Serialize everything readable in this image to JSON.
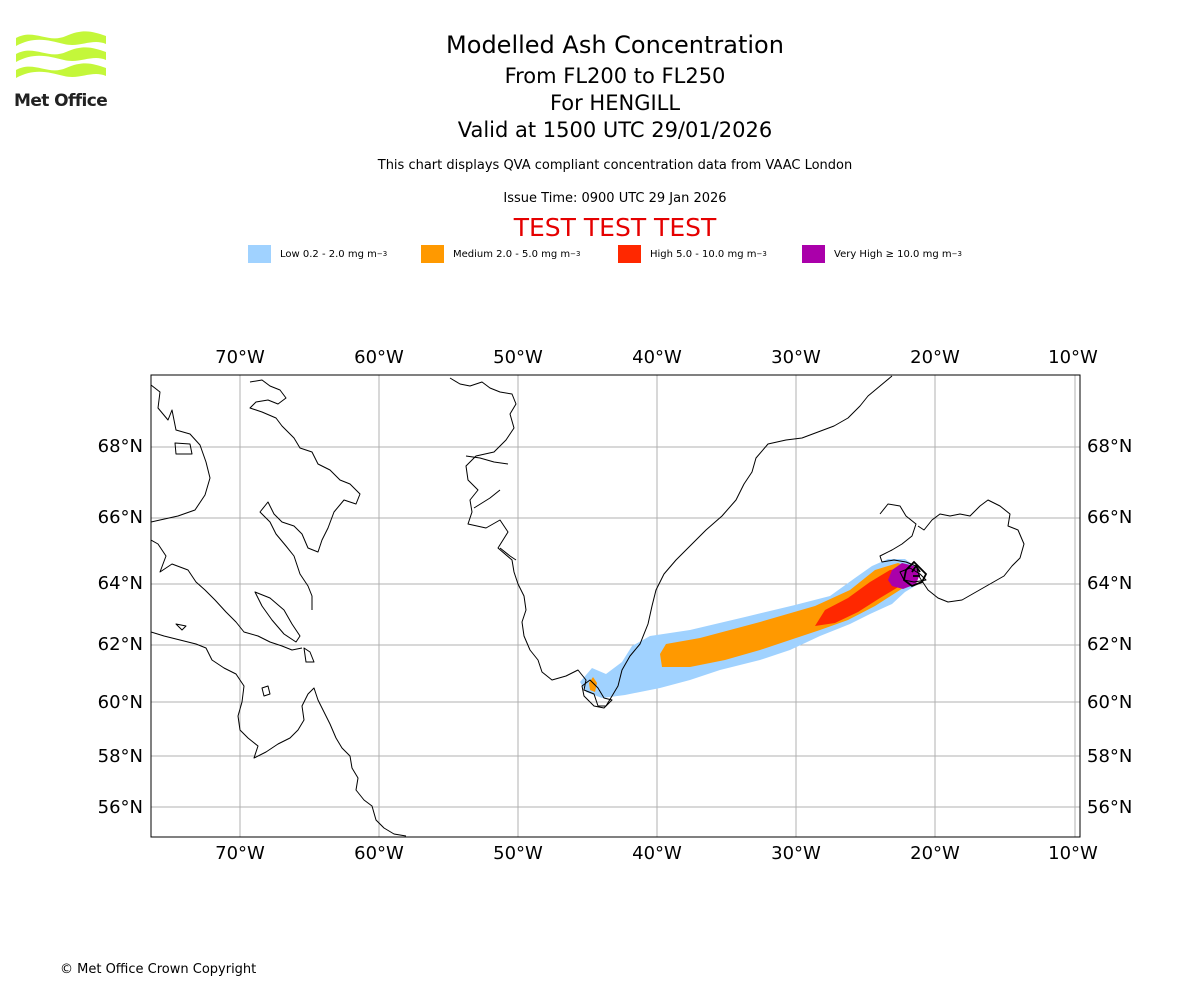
{
  "header": {
    "logo_text": "Met Office",
    "title": "Modelled Ash Concentration",
    "level_range": "From FL200 to FL250",
    "volcano_line": "For HENGILL",
    "valid_time": "Valid at 1500 UTC 29/01/2026",
    "description": "This chart displays QVA compliant concentration data from VAAC London",
    "issue_time": "Issue Time: 0900 UTC 29 Jan 2026",
    "test_banner": "TEST TEST TEST"
  },
  "legend": [
    {
      "label": "Low 0.2 - 2.0 mg m",
      "unit_exp": "−3",
      "color": "#a0d2ff"
    },
    {
      "label": "Medium 2.0 - 5.0 mg m",
      "unit_exp": "−3",
      "color": "#ff9900"
    },
    {
      "label": "High 5.0 - 10.0 mg m",
      "unit_exp": "−3",
      "color": "#ff2800"
    },
    {
      "label": "Very High ≥ 10.0 mg m",
      "unit_exp": "−3",
      "color": "#aa00aa"
    }
  ],
  "map": {
    "longitude_labels": [
      "70°W",
      "60°W",
      "50°W",
      "40°W",
      "30°W",
      "20°W",
      "10°W"
    ],
    "latitude_labels": [
      "68°N",
      "66°N",
      "64°N",
      "62°N",
      "60°N",
      "58°N",
      "56°N"
    ],
    "volcano": "HENGILL"
  },
  "footer": {
    "copyright": "© Met Office Crown Copyright"
  }
}
